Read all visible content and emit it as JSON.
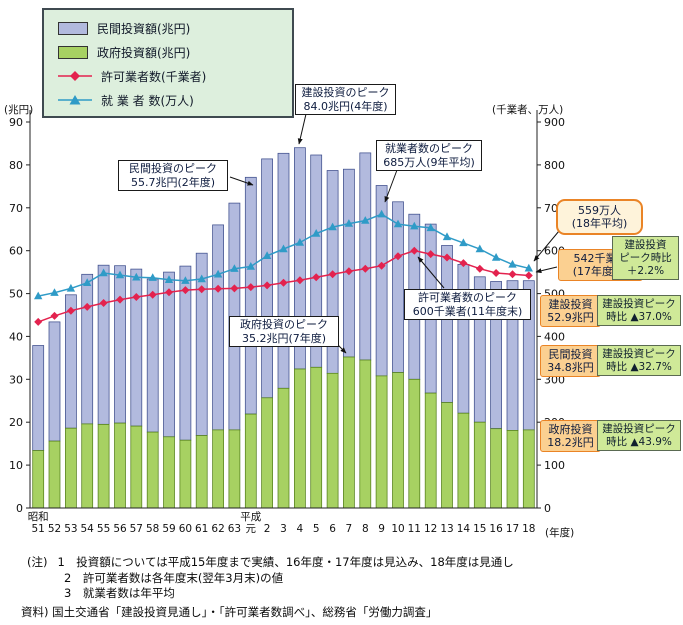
{
  "axis_labels": {
    "left": "(兆円)",
    "right": "(千業者、万人)",
    "x_unit": "(年度)",
    "era_showa": "昭和",
    "era_heisei": "平成"
  },
  "legend": {
    "items": [
      {
        "label": "民間投資額(兆円)",
        "swatch": "blue-rect"
      },
      {
        "label": "政府投資額(兆円)",
        "swatch": "green-rect"
      },
      {
        "label": "許可業者数(千業者)",
        "swatch": "red-diamond-line"
      },
      {
        "label": "就 業 者 数(万人)",
        "swatch": "teal-triangle-line"
      }
    ]
  },
  "chart_data": {
    "type": "bar",
    "stacked": true,
    "categories": [
      "51",
      "52",
      "53",
      "54",
      "55",
      "56",
      "57",
      "58",
      "59",
      "60",
      "61",
      "62",
      "63",
      "元",
      "2",
      "3",
      "4",
      "5",
      "6",
      "7",
      "8",
      "9",
      "10",
      "11",
      "12",
      "13",
      "14",
      "15",
      "16",
      "17",
      "18"
    ],
    "era_breaks": {
      "showa_index": 0,
      "heisei_index": 13
    },
    "bar_series": [
      {
        "name": "政府投資額(兆円)",
        "axis": "left",
        "color": "#a7d162",
        "stroke": "#55801c",
        "values": [
          13.4,
          15.6,
          18.6,
          19.6,
          19.5,
          19.8,
          19.1,
          17.7,
          16.6,
          15.8,
          16.9,
          18.2,
          18.2,
          21.9,
          25.7,
          27.9,
          32.4,
          32.8,
          31.4,
          35.2,
          34.5,
          30.8,
          31.6,
          30.0,
          26.8,
          24.6,
          22.1,
          20.0,
          18.5,
          18.1,
          18.2
        ]
      },
      {
        "name": "民間投資額(兆円)",
        "axis": "left",
        "color": "#b2bade",
        "stroke": "#3e4e8c",
        "values": [
          24.5,
          27.8,
          31.1,
          34.9,
          37.1,
          36.7,
          36.6,
          35.7,
          38.4,
          40.6,
          42.5,
          47.8,
          52.9,
          55.2,
          55.7,
          54.8,
          51.6,
          49.5,
          47.3,
          43.8,
          48.3,
          44.4,
          39.8,
          38.5,
          39.4,
          36.6,
          34.7,
          33.9,
          34.3,
          34.9,
          34.8
        ]
      }
    ],
    "line_series": [
      {
        "name": "許可業者数(千業者)",
        "axis": "right",
        "marker": "diamond",
        "color": "#e3224e",
        "values": [
          434,
          448,
          460,
          469,
          478,
          486,
          492,
          497,
          503,
          508,
          510,
          511,
          512,
          515,
          519,
          525,
          531,
          538,
          545,
          552,
          558,
          565,
          587,
          600,
          592,
          584,
          571,
          558,
          548,
          545,
          542
        ]
      },
      {
        "name": "就業者数(万人)",
        "axis": "right",
        "marker": "triangle",
        "color": "#2f9bc7",
        "values": [
          494,
          502,
          512,
          525,
          548,
          543,
          538,
          537,
          532,
          530,
          534,
          545,
          558,
          563,
          588,
          604,
          619,
          640,
          655,
          663,
          670,
          685,
          662,
          657,
          653,
          632,
          618,
          604,
          584,
          568,
          559
        ]
      }
    ],
    "y_left": {
      "title": "(兆円)",
      "min": 0,
      "max": 90,
      "step": 10
    },
    "y_right": {
      "title": "(千業者、万人)",
      "min": 0,
      "max": 900,
      "step": 100
    },
    "x_unit": "(年度)"
  },
  "annotations": {
    "construction_peak": {
      "line1": "建設投資のピーク",
      "line2": "84.0兆円(4年度)"
    },
    "private_peak": {
      "line1": "民間投資のピーク",
      "line2": "55.7兆円(2年度)"
    },
    "workers_peak": {
      "line1": "就業者数のピーク",
      "line2": "685万人(9年平均)"
    },
    "workers_latest": {
      "line1": "559万人",
      "line2": "(18年平均)"
    },
    "contractors_latest": {
      "line1": "542千業者",
      "line2": "(17年度末)"
    },
    "contractors_peak": {
      "line1": "許可業者数のピーク",
      "line2": "600千業者(11年度末)"
    },
    "government_peak": {
      "line1": "政府投資のピーク",
      "line2": "35.2兆円(7年度)"
    },
    "total_latest": {
      "line1": "建設投資",
      "line2": "52.9兆円"
    },
    "private_latest": {
      "line1": "民間投資",
      "line2": "34.8兆円"
    },
    "government_latest": {
      "line1": "政府投資",
      "line2": "18.2兆円"
    },
    "contractors_vs_peak": {
      "line1": "建設投資",
      "line2": "ピーク時比",
      "line3": "＋2.2%"
    },
    "total_vs_peak": {
      "line1": "建設投資ピーク",
      "line2": "時比 ▲37.0%"
    },
    "private_vs_peak": {
      "line1": "建設投資ピーク",
      "line2": "時比 ▲32.7%"
    },
    "government_vs_peak": {
      "line1": "建設投資ピーク",
      "line2": "時比 ▲43.9%"
    }
  },
  "notes": {
    "label": "(注)",
    "items": [
      "1　投資額については平成15年度まで実績、16年度・17年度は見込み、18年度は見通し",
      "2　許可業者数は各年度末(翌年3月末)の値",
      "3　就業者数は年平均"
    ],
    "source": "資料) 国土交通省「建設投資見通し」・「許可業者数調べ」、総務省「労働力調査」"
  }
}
